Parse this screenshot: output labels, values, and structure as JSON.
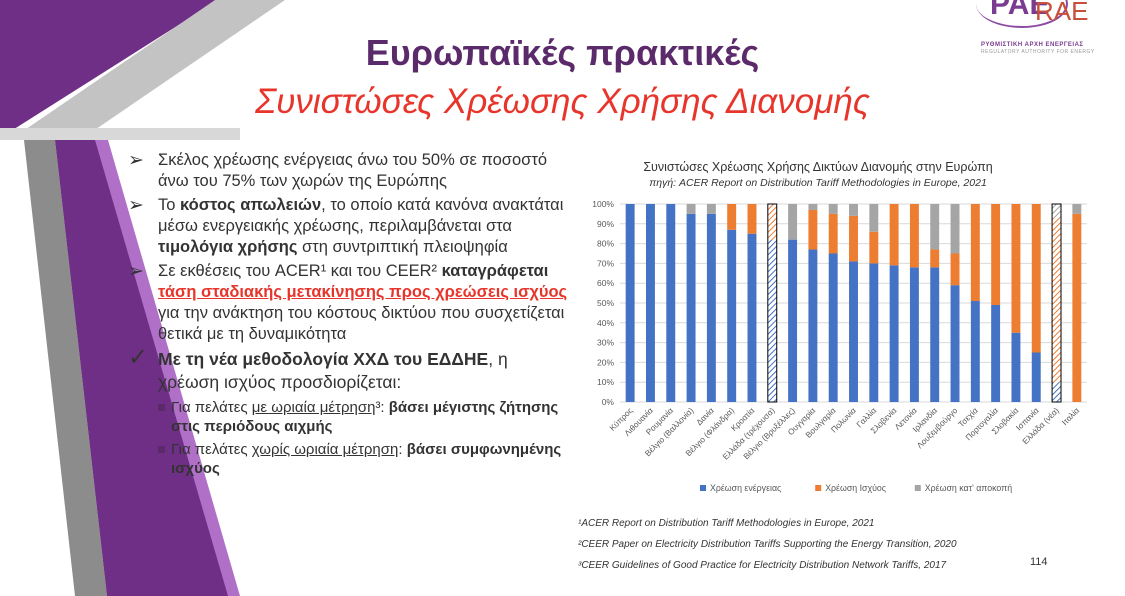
{
  "title": "Ευρωπαϊκές πρακτικές",
  "subtitle": "Συνιστώσες Χρέωσης Χρήσης Διανομής",
  "logo": {
    "brand": "PAE",
    "brand_latin": "RAE",
    "line1": "ΡΥΘΜΙΣΤΙΚΗ ΑΡΧΗ ΕΝΕΡΓΕΙΑΣ",
    "line2": "REGULATORY AUTHORITY FOR ENERGY"
  },
  "bullets": {
    "b1": "Σκέλος χρέωσης ενέργειας άνω του 50% σε ποσοστό άνω του 75% των χωρών της Ευρώπης",
    "b2_a": "Το ",
    "b2_b": "κόστος απωλειών",
    "b2_c": ", το οποίο κατά κανόνα ανακτάται μέσω ενεργειακής χρέωσης, περιλαμβάνεται στα ",
    "b2_d": "τιμολόγια χρήσης",
    "b2_e": " στη συντριπτική πλειοψηφία",
    "b3_a": "Σε εκθέσεις του ACER¹ και του CEER² ",
    "b3_b": "καταγράφεται ",
    "b3_c": "τάση σταδιακής μετακίνησης προς χρεώσεις ισχύος",
    "b3_d": " για την ανάκτηση του κόστους δικτύου που συσχετίζεται θετικά με τη δυναμικότητα",
    "b4_a": "Με τη νέα μεθοδολογία ΧΧΔ του ΕΔΔΗΕ",
    "b4_b": ", η χρέωση ισχύος προσδιορίζεται:",
    "s1_a": "Για πελάτες ",
    "s1_b": "με ωριαία μέτρηση",
    "s1_c": "³: ",
    "s1_d": "βάσει μέγιστης ζήτησης στις περιόδους αιχμής",
    "s2_a": "Για πελάτες ",
    "s2_b": "χωρίς ωριαία μέτρηση",
    "s2_c": ": ",
    "s2_d": "βάσει συμφωνημένης ισχύος"
  },
  "chart_data": {
    "type": "bar",
    "stacked": true,
    "title": "Συνιστώσες Χρέωσης Χρήσης Δικτύων Διανομής στην Ευρώπη",
    "subtitle": "πηγή: ACER Report on Distribution Tariff Methodologies in Europe, 2021",
    "categories": [
      "Κύπρος",
      "Λιθουανία",
      "Ρουμανία",
      "Βέλγιο (Βαλλονία)",
      "Δανία",
      "Βέλγιο (Φλάνδρα)",
      "Κροατία",
      "Ελλάδα (τρέχουσα)",
      "Βέλγιο (Βρυξέλλες)",
      "Ουγγαρία",
      "Βουλγαρία",
      "Πολωνία",
      "Γαλλία",
      "Σλοβενία",
      "Λετονία",
      "Ιρλανδία",
      "Λουξεμβούργο",
      "Τσεχία",
      "Πορτογαλία",
      "Σλοβακία",
      "Ισπανία",
      "Ελλάδα (νέα)",
      "Ιταλία"
    ],
    "hatched": [
      "Ελλάδα (τρέχουσα)",
      "Ελλάδα (νέα)"
    ],
    "series": [
      {
        "name": "Χρέωση ενέργειας",
        "color": "#4472c4",
        "values": [
          100,
          100,
          100,
          95,
          95,
          87,
          85,
          82,
          82,
          77,
          75,
          71,
          70,
          69,
          68,
          68,
          59,
          51,
          49,
          35,
          25,
          10,
          0
        ]
      },
      {
        "name": "Χρέωση Ισχύος",
        "color": "#ed7d31",
        "values": [
          0,
          0,
          0,
          0,
          0,
          13,
          15,
          18,
          0,
          20,
          20,
          23,
          16,
          31,
          32,
          9,
          16,
          49,
          51,
          65,
          75,
          83,
          95
        ]
      },
      {
        "name": "Χρέωση κατ' αποκοπή",
        "color": "#a5a5a5",
        "values": [
          0,
          0,
          0,
          5,
          5,
          0,
          0,
          0,
          18,
          3,
          5,
          6,
          14,
          0,
          0,
          23,
          25,
          0,
          0,
          0,
          0,
          7,
          5
        ]
      }
    ],
    "yticks": [
      "0%",
      "10%",
      "20%",
      "30%",
      "40%",
      "50%",
      "60%",
      "70%",
      "80%",
      "90%",
      "100%"
    ],
    "ylim": [
      0,
      100
    ],
    "legend_position": "bottom"
  },
  "footnotes": [
    "¹ACER Report on Distribution Tariff Methodologies in Europe, 2021",
    "²CEER Paper on Electricity Distribution Tariffs Supporting the Energy Transition, 2020",
    "³CEER Guidelines of Good Practice for Electricity Distribution Network Tariffs, 2017"
  ],
  "page_number": "114"
}
